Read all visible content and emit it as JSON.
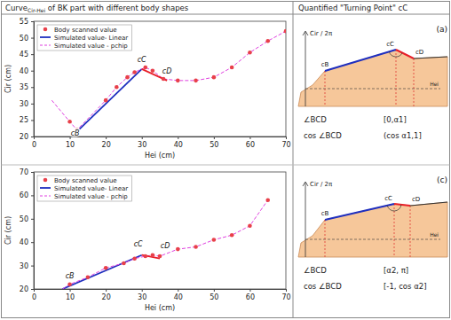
{
  "header": {
    "left": {
      "text": "Curve",
      "sub": "Cir-Hei",
      "rest": " of BK part with different body shapes"
    },
    "right": "Quantified \"Turning Point\" cC"
  },
  "chart_data": [
    {
      "type": "line",
      "xlabel": "Hei (cm)",
      "ylabel": "Cir (cm)",
      "xlim": [
        0,
        70
      ],
      "xticks": [
        0,
        10,
        20,
        30,
        40,
        50,
        60,
        70
      ],
      "ylim": [
        20,
        55
      ],
      "yticks": [
        20,
        25,
        30,
        35,
        40,
        45,
        50,
        55
      ],
      "legend": "upper left",
      "series": [
        {
          "name": "Body scanned value",
          "type": "scatter",
          "color": "#e8404a",
          "marker": "circle",
          "x": [
            10,
            12,
            20,
            23,
            26,
            28,
            31,
            33,
            36,
            40,
            45,
            50,
            55,
            60,
            65,
            70
          ],
          "values": [
            24.5,
            22,
            31,
            35,
            38,
            39.5,
            41,
            40,
            37.5,
            37,
            37,
            38,
            41,
            45.5,
            49,
            52
          ]
        },
        {
          "name": "Simulated value- Linear",
          "type": "line",
          "color": "#1f2fbf",
          "line_style": "solid",
          "x": [
            12,
            30
          ],
          "values": [
            21.5,
            40.5
          ]
        },
        {
          "name": "Simulated value - pchip",
          "type": "line",
          "color": "#e040e0",
          "line_style": "dashed",
          "x": [
            5,
            10,
            12,
            20,
            23,
            26,
            28,
            31,
            33,
            36,
            40,
            45,
            50,
            55,
            60,
            65,
            70
          ],
          "values": [
            31,
            24.5,
            22,
            31,
            35,
            38,
            39.5,
            41,
            40,
            37.5,
            37,
            37,
            38,
            41,
            45.5,
            49,
            52
          ]
        },
        {
          "type": "line",
          "color": "#e8202a",
          "line_style": "solid",
          "x": [
            30,
            37
          ],
          "values": [
            40.5,
            37
          ]
        }
      ],
      "annotations": [
        {
          "text": "cB",
          "x": 11.5,
          "y": 20.4
        },
        {
          "text": "cC",
          "x": 30,
          "y": 42.5
        },
        {
          "text": "cD",
          "x": 37,
          "y": 39
        }
      ]
    },
    {
      "type": "line",
      "xlabel": "Hei (cm)",
      "ylabel": "Cir (cm)",
      "xlim": [
        0,
        70
      ],
      "xticks": [
        0,
        10,
        20,
        30,
        40,
        50,
        60,
        70
      ],
      "ylim": [
        20,
        70
      ],
      "yticks": [
        20,
        30,
        40,
        50,
        60,
        70
      ],
      "legend": "upper left",
      "series": [
        {
          "name": "Body scanned value",
          "type": "scatter",
          "color": "#e8404a",
          "marker": "circle",
          "x": [
            10,
            15,
            20,
            25,
            28,
            31,
            33,
            35,
            40,
            45,
            50,
            55,
            60,
            65
          ],
          "values": [
            22,
            25,
            29,
            31,
            33,
            34,
            34.5,
            34,
            37,
            38,
            41,
            43,
            47,
            58
          ]
        },
        {
          "name": "Simulated value- Linear",
          "type": "line",
          "color": "#1f2fbf",
          "line_style": "solid",
          "x": [
            8,
            30
          ],
          "values": [
            20,
            34.5
          ]
        },
        {
          "name": "Simulated value - pchip",
          "type": "line",
          "color": "#e040e0",
          "line_style": "dashed",
          "x": [
            8,
            10,
            15,
            20,
            25,
            28,
            31,
            33,
            35,
            40,
            45,
            50,
            55,
            60,
            65
          ],
          "values": [
            20,
            22,
            25,
            29,
            31,
            33,
            34,
            34.5,
            34,
            37,
            38,
            41,
            43,
            47,
            58
          ]
        },
        {
          "type": "line",
          "color": "#e8202a",
          "line_style": "solid",
          "x": [
            30,
            35
          ],
          "values": [
            34.5,
            33
          ]
        }
      ],
      "annotations": [
        {
          "text": "cB",
          "x": 10,
          "y": 24.5
        },
        {
          "text": "cC",
          "x": 29,
          "y": 38
        },
        {
          "text": "cD",
          "x": 36.5,
          "y": 37.5
        }
      ]
    }
  ],
  "diagrams": [
    {
      "letter": "(a)",
      "y_axis": "Cir / 2π",
      "x_axis": "Hei",
      "points": [
        "cB",
        "cC",
        "cD"
      ],
      "rows": [
        [
          "∠BCD",
          "[0,α1]"
        ],
        [
          "cos ∠BCD",
          "(cos α1,1]"
        ]
      ]
    },
    {
      "letter": "(c)",
      "y_axis": "Cir / 2π",
      "x_axis": "Hei",
      "points": [
        "cB",
        "cC",
        "cD"
      ],
      "rows": [
        [
          "∠BCD",
          "[α2, π]"
        ],
        [
          "cos ∠BCD",
          "[-1, cos α2]"
        ]
      ]
    }
  ]
}
